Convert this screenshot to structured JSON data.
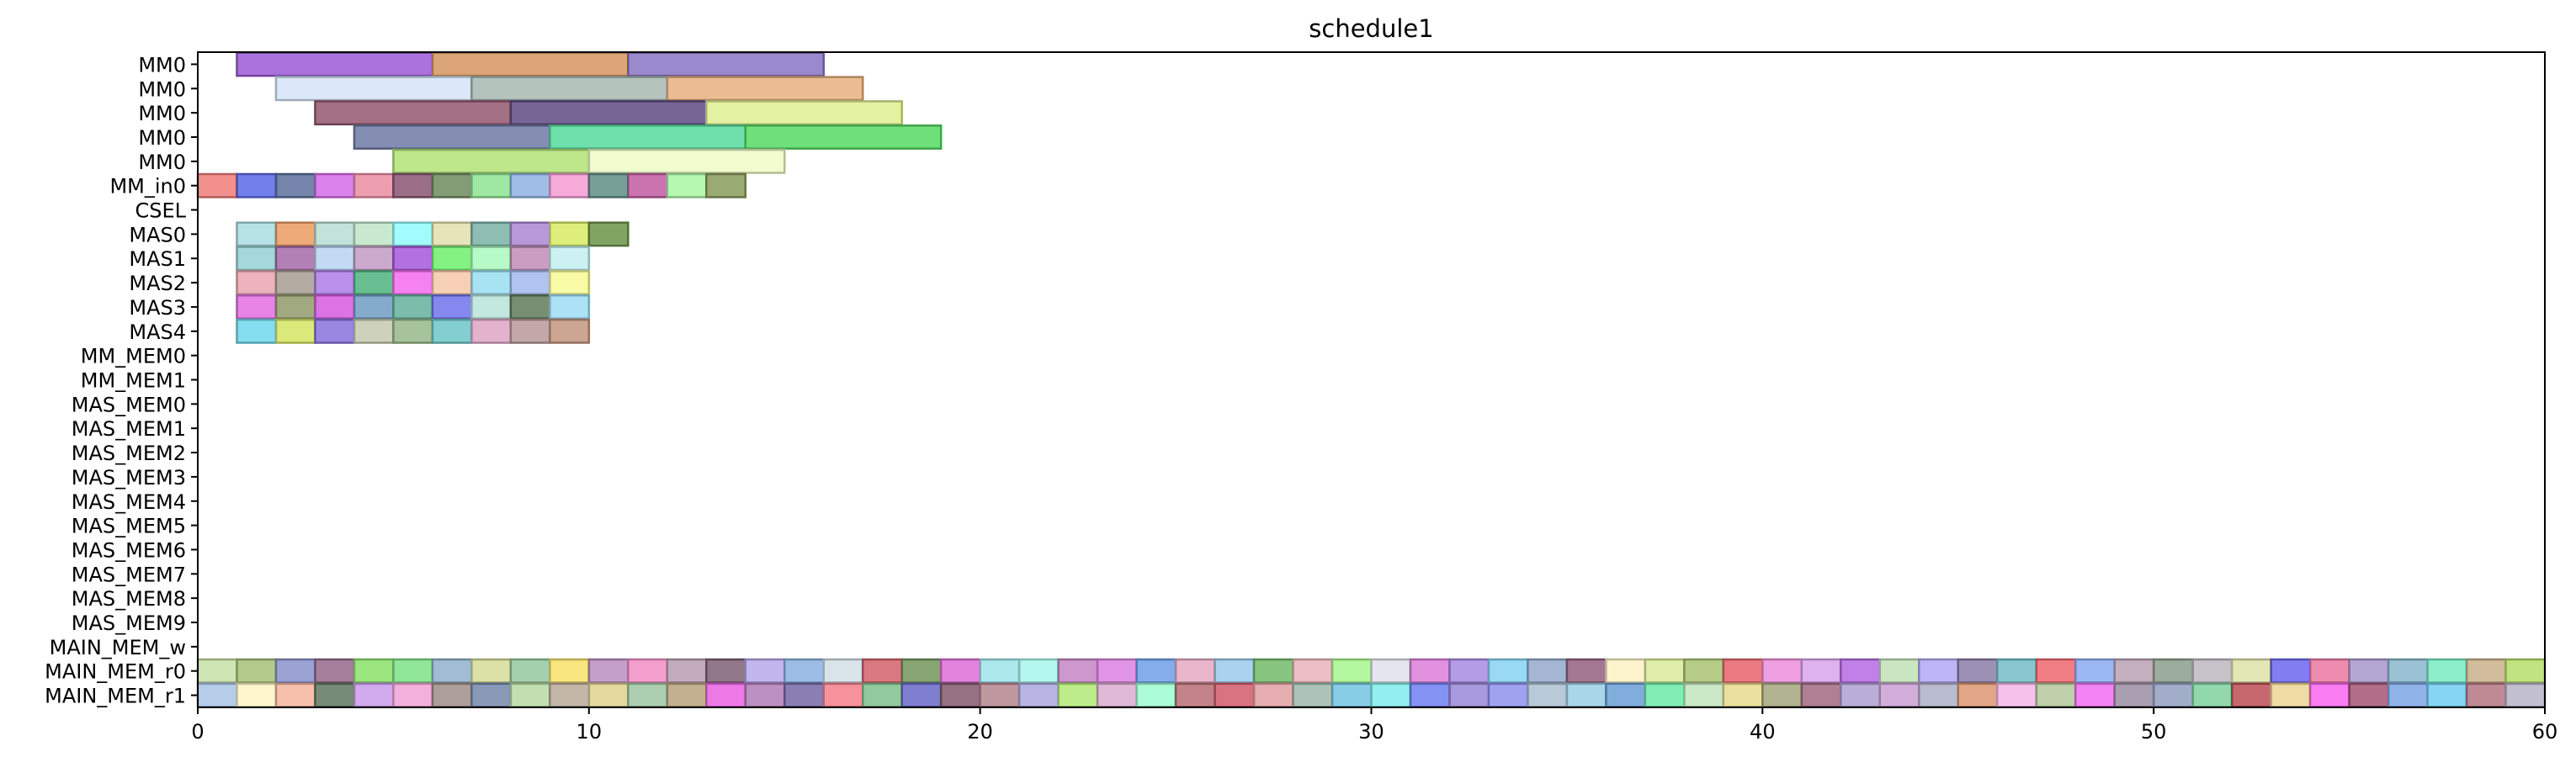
{
  "chart_data": {
    "type": "gantt",
    "title": "schedule1",
    "xlabel": "",
    "ylabel": "",
    "xlim": [
      0,
      60
    ],
    "x_ticks": [
      0,
      10,
      20,
      30,
      40,
      50,
      60
    ],
    "grid": false,
    "rows": [
      "MM0",
      "MM0",
      "MM0",
      "MM0",
      "MM0",
      "MM_in0",
      "CSEL",
      "MAS0",
      "MAS1",
      "MAS2",
      "MAS3",
      "MAS4",
      "MM_MEM0",
      "MM_MEM1",
      "MAS_MEM0",
      "MAS_MEM1",
      "MAS_MEM2",
      "MAS_MEM3",
      "MAS_MEM4",
      "MAS_MEM5",
      "MAS_MEM6",
      "MAS_MEM7",
      "MAS_MEM8",
      "MAS_MEM9",
      "MAIN_MEM_w",
      "MAIN_MEM_r0",
      "MAIN_MEM_r1"
    ],
    "tasks": [
      {
        "row": 0,
        "start": 1,
        "end": 6,
        "color": "#9b59d6"
      },
      {
        "row": 0,
        "start": 6,
        "end": 11,
        "color": "#d6955f"
      },
      {
        "row": 0,
        "start": 11,
        "end": 16,
        "color": "#8a74c6"
      },
      {
        "row": 1,
        "start": 2,
        "end": 7,
        "color": "#d3e4f8"
      },
      {
        "row": 1,
        "start": 7,
        "end": 12,
        "color": "#a7bab2"
      },
      {
        "row": 1,
        "start": 12,
        "end": 17,
        "color": "#e7b07e"
      },
      {
        "row": 2,
        "start": 3,
        "end": 8,
        "color": "#93566f"
      },
      {
        "row": 2,
        "start": 8,
        "end": 13,
        "color": "#5f4a83"
      },
      {
        "row": 2,
        "start": 13,
        "end": 18,
        "color": "#def091"
      },
      {
        "row": 3,
        "start": 4,
        "end": 9,
        "color": "#6f7aa4"
      },
      {
        "row": 3,
        "start": 9,
        "end": 14,
        "color": "#55da9c"
      },
      {
        "row": 3,
        "start": 14,
        "end": 19,
        "color": "#55d962"
      },
      {
        "row": 4,
        "start": 5,
        "end": 10,
        "color": "#b3e276"
      },
      {
        "row": 4,
        "start": 10,
        "end": 15,
        "color": "#eefcc6"
      },
      {
        "row": 5,
        "start": 0,
        "end": 1,
        "color": "#ee7c79"
      },
      {
        "row": 5,
        "start": 1,
        "end": 2,
        "color": "#5a69e6"
      },
      {
        "row": 5,
        "start": 2,
        "end": 3,
        "color": "#5c6e9b"
      },
      {
        "row": 5,
        "start": 3,
        "end": 4,
        "color": "#d56be8"
      },
      {
        "row": 5,
        "start": 4,
        "end": 5,
        "color": "#ea8ea2"
      },
      {
        "row": 5,
        "start": 5,
        "end": 6,
        "color": "#8a5472"
      },
      {
        "row": 5,
        "start": 6,
        "end": 7,
        "color": "#6f8b5e"
      },
      {
        "row": 5,
        "start": 7,
        "end": 8,
        "color": "#8ee492"
      },
      {
        "row": 5,
        "start": 8,
        "end": 9,
        "color": "#8fb1e4"
      },
      {
        "row": 5,
        "start": 9,
        "end": 10,
        "color": "#f59bd2"
      },
      {
        "row": 5,
        "start": 10,
        "end": 11,
        "color": "#5f8d85"
      },
      {
        "row": 5,
        "start": 11,
        "end": 12,
        "color": "#c25aa0"
      },
      {
        "row": 5,
        "start": 12,
        "end": 13,
        "color": "#a9f7a3"
      },
      {
        "row": 5,
        "start": 13,
        "end": 14,
        "color": "#889b5a"
      },
      {
        "row": 7,
        "start": 1,
        "end": 2,
        "color": "#a9dce0"
      },
      {
        "row": 7,
        "start": 2,
        "end": 3,
        "color": "#ec9b62"
      },
      {
        "row": 7,
        "start": 3,
        "end": 4,
        "color": "#b7ddd3"
      },
      {
        "row": 7,
        "start": 4,
        "end": 5,
        "color": "#bfe4c8"
      },
      {
        "row": 7,
        "start": 5,
        "end": 6,
        "color": "#92fafc"
      },
      {
        "row": 7,
        "start": 6,
        "end": 7,
        "color": "#e1e0ad"
      },
      {
        "row": 7,
        "start": 7,
        "end": 8,
        "color": "#79b1a6"
      },
      {
        "row": 7,
        "start": 8,
        "end": 9,
        "color": "#ad87d2"
      },
      {
        "row": 7,
        "start": 9,
        "end": 10,
        "color": "#d7ec63"
      },
      {
        "row": 7,
        "start": 10,
        "end": 11,
        "color": "#6c9448"
      },
      {
        "row": 8,
        "start": 1,
        "end": 2,
        "color": "#95d1d3"
      },
      {
        "row": 8,
        "start": 2,
        "end": 3,
        "color": "#a56aa8"
      },
      {
        "row": 8,
        "start": 3,
        "end": 4,
        "color": "#b8d4f2"
      },
      {
        "row": 8,
        "start": 4,
        "end": 5,
        "color": "#c39bc5"
      },
      {
        "row": 8,
        "start": 5,
        "end": 6,
        "color": "#a557da"
      },
      {
        "row": 8,
        "start": 6,
        "end": 7,
        "color": "#6ef06c"
      },
      {
        "row": 8,
        "start": 7,
        "end": 8,
        "color": "#a9f9bd"
      },
      {
        "row": 8,
        "start": 8,
        "end": 9,
        "color": "#c08db7"
      },
      {
        "row": 8,
        "start": 9,
        "end": 10,
        "color": "#c4eef0"
      },
      {
        "row": 9,
        "start": 1,
        "end": 2,
        "color": "#e9a6b1"
      },
      {
        "row": 9,
        "start": 2,
        "end": 3,
        "color": "#a79d92"
      },
      {
        "row": 9,
        "start": 3,
        "end": 4,
        "color": "#ad7de8"
      },
      {
        "row": 9,
        "start": 4,
        "end": 5,
        "color": "#4fb37e"
      },
      {
        "row": 9,
        "start": 5,
        "end": 6,
        "color": "#f46cee"
      },
      {
        "row": 9,
        "start": 6,
        "end": 7,
        "color": "#f6c7a8"
      },
      {
        "row": 9,
        "start": 7,
        "end": 8,
        "color": "#98def0"
      },
      {
        "row": 9,
        "start": 8,
        "end": 9,
        "color": "#a3b9ee"
      },
      {
        "row": 9,
        "start": 9,
        "end": 10,
        "color": "#f8f995"
      },
      {
        "row": 10,
        "start": 1,
        "end": 2,
        "color": "#e36fe2"
      },
      {
        "row": 10,
        "start": 2,
        "end": 3,
        "color": "#919a6b"
      },
      {
        "row": 10,
        "start": 3,
        "end": 4,
        "color": "#d65ae0"
      },
      {
        "row": 10,
        "start": 4,
        "end": 5,
        "color": "#6e9cc3"
      },
      {
        "row": 10,
        "start": 5,
        "end": 6,
        "color": "#62b19b"
      },
      {
        "row": 10,
        "start": 6,
        "end": 7,
        "color": "#7173ec"
      },
      {
        "row": 10,
        "start": 7,
        "end": 8,
        "color": "#b9e4d9"
      },
      {
        "row": 10,
        "start": 8,
        "end": 9,
        "color": "#607a5a"
      },
      {
        "row": 10,
        "start": 9,
        "end": 10,
        "color": "#9fddf5"
      },
      {
        "row": 11,
        "start": 1,
        "end": 2,
        "color": "#6fd8ec"
      },
      {
        "row": 11,
        "start": 2,
        "end": 3,
        "color": "#d5e563"
      },
      {
        "row": 11,
        "start": 3,
        "end": 4,
        "color": "#8673dc"
      },
      {
        "row": 11,
        "start": 4,
        "end": 5,
        "color": "#c6c9b0"
      },
      {
        "row": 11,
        "start": 5,
        "end": 6,
        "color": "#96b889"
      },
      {
        "row": 11,
        "start": 6,
        "end": 7,
        "color": "#6dc6c8"
      },
      {
        "row": 11,
        "start": 7,
        "end": 8,
        "color": "#dea6c6"
      },
      {
        "row": 11,
        "start": 8,
        "end": 9,
        "color": "#b89998"
      },
      {
        "row": 11,
        "start": 9,
        "end": 10,
        "color": "#c49580"
      }
    ],
    "main_mem_r0_colors": [
      "#c4e0a6",
      "#a7c178",
      "#8a92cc",
      "#94698b",
      "#8be269",
      "#7ee387",
      "#92b1cb",
      "#d5dc98",
      "#95c89f",
      "#f9e26b",
      "#b88ec0",
      "#f28dc6",
      "#b99fb0",
      "#7c5f76",
      "#b7a8ea",
      "#8cb1e2",
      "#d1dfe6",
      "#d2606a",
      "#72955b",
      "#dd6fd8",
      "#9fe4e9",
      "#a6f6ec",
      "#c685c4",
      "#dd83e3",
      "#6e9fe8",
      "#e5a9c2",
      "#9bcbec",
      "#72ba6a",
      "#e8b4b8",
      "#a6f68d",
      "#e1e1ec",
      "#dd7edc",
      "#a78be3",
      "#87d2f2",
      "#94a9cc",
      "#94607f",
      "#fdf1c4",
      "#d8ea98",
      "#a9c273",
      "#e7646c",
      "#ec8fdc",
      "#d8a3ec",
      "#b56ae3",
      "#c1e0b6",
      "#b3a8f4",
      "#8c7ca8",
      "#73bdc7",
      "#ee6770",
      "#8aabf2",
      "#baa1b4",
      "#8b9e8c",
      "#beb8c1",
      "#dee3a9",
      "#6c66ee",
      "#ea78a0",
      "#a898cd",
      "#89b6cc",
      "#77ebc2",
      "#c9b18a",
      "#b7df6a"
    ],
    "main_mem_r1_colors": [
      "#a9c4e6",
      "#fff5c4",
      "#f4b59d",
      "#5f7860",
      "#c99bea",
      "#f2a2d6",
      "#9f8d87",
      "#7487ac",
      "#b6d9a3",
      "#b9ab99",
      "#ded28e",
      "#9dc6a2",
      "#b8a27d",
      "#e962e2",
      "#b07cb7",
      "#7569a6",
      "#f47f8b",
      "#7fbf8e",
      "#6a68c7",
      "#82586d",
      "#b4858e",
      "#aca8e0",
      "#b1ea75",
      "#d9add0",
      "#9dfbd1",
      "#b86f74",
      "#d35a6b",
      "#e3a0a3",
      "#9eb9ab",
      "#72c4e1",
      "#7fecec",
      "#6e80f1",
      "#9a87d7",
      "#8f90ec",
      "#acbfd1",
      "#9bcfe6",
      "#6b9fd7",
      "#6ceba7",
      "#c2e4bd",
      "#e7da8d",
      "#a5a77e",
      "#a16a80",
      "#ae9fd1",
      "#cca0d3",
      "#adb0c6",
      "#dd9771",
      "#f5b7e7",
      "#b3c79b",
      "#f06ef1",
      "#9a8ea3",
      "#929fc0",
      "#7ed29f",
      "#bb4f56",
      "#edd594",
      "#f966ee",
      "#a45474",
      "#7ca6e6",
      "#71cef1",
      "#b57683",
      "#b7b4c8"
    ]
  }
}
